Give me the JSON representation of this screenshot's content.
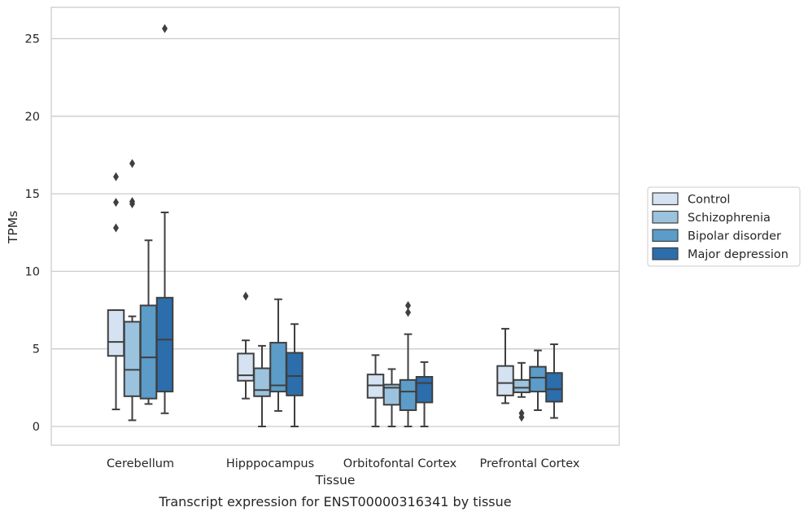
{
  "chart_data": {
    "type": "box",
    "xlabel": "Tissue",
    "ylabel": "TPMs",
    "caption": "Transcript expression for ENST00000316341 by tissue",
    "ylim": [
      -1.2,
      26.8
    ],
    "yticks": [
      0,
      5,
      10,
      15,
      20,
      25
    ],
    "grid": "horizontal",
    "legend_position": "right",
    "categories": [
      "Cerebellum",
      "Hipppocampus",
      "Orbitofontal Cortex",
      "Prefrontal Cortex"
    ],
    "series": [
      {
        "name": "Control",
        "color": "#d4e2f1",
        "boxes": [
          {
            "whislo": 1.1,
            "q1": 4.55,
            "med": 5.45,
            "q3": 7.5,
            "whishi": 7.5,
            "fliers": [
              16.1,
              14.45,
              12.8
            ]
          },
          {
            "whislo": 1.8,
            "q1": 2.95,
            "med": 3.3,
            "q3": 4.7,
            "whishi": 5.55,
            "fliers": [
              8.4
            ]
          },
          {
            "whislo": 0.0,
            "q1": 1.85,
            "med": 2.65,
            "q3": 3.35,
            "whishi": 4.6,
            "fliers": []
          },
          {
            "whislo": 1.5,
            "q1": 2.0,
            "med": 2.8,
            "q3": 3.9,
            "whishi": 6.3,
            "fliers": []
          }
        ]
      },
      {
        "name": "Schizophrenia",
        "color": "#9cc3de",
        "boxes": [
          {
            "whislo": 0.4,
            "q1": 1.95,
            "med": 3.65,
            "q3": 6.75,
            "whishi": 7.1,
            "fliers": [
              16.95,
              14.5,
              14.35
            ]
          },
          {
            "whislo": 0.0,
            "q1": 1.95,
            "med": 2.35,
            "q3": 3.75,
            "whishi": 5.2,
            "fliers": []
          },
          {
            "whislo": 0.0,
            "q1": 1.4,
            "med": 2.5,
            "q3": 2.7,
            "whishi": 3.7,
            "fliers": []
          },
          {
            "whislo": 1.9,
            "q1": 2.2,
            "med": 2.5,
            "q3": 3.0,
            "whishi": 4.1,
            "fliers": [
              0.85,
              0.6
            ]
          }
        ]
      },
      {
        "name": "Bipolar disorder",
        "color": "#5b9cc8",
        "boxes": [
          {
            "whislo": 1.45,
            "q1": 1.8,
            "med": 4.45,
            "q3": 7.8,
            "whishi": 12.0,
            "fliers": []
          },
          {
            "whislo": 1.0,
            "q1": 2.25,
            "med": 2.65,
            "q3": 5.4,
            "whishi": 8.2,
            "fliers": []
          },
          {
            "whislo": 0.0,
            "q1": 1.05,
            "med": 2.25,
            "q3": 3.0,
            "whishi": 5.95,
            "fliers": [
              7.8,
              7.35
            ]
          },
          {
            "whislo": 1.05,
            "q1": 2.25,
            "med": 3.15,
            "q3": 3.85,
            "whishi": 4.9,
            "fliers": []
          }
        ]
      },
      {
        "name": "Major depression",
        "color": "#2c6dac",
        "boxes": [
          {
            "whislo": 0.85,
            "q1": 2.25,
            "med": 5.6,
            "q3": 8.3,
            "whishi": 13.8,
            "fliers": [
              25.65
            ]
          },
          {
            "whislo": 0.0,
            "q1": 2.0,
            "med": 3.25,
            "q3": 4.75,
            "whishi": 6.6,
            "fliers": []
          },
          {
            "whislo": 0.0,
            "q1": 1.55,
            "med": 2.8,
            "q3": 3.2,
            "whishi": 4.15,
            "fliers": []
          },
          {
            "whislo": 0.55,
            "q1": 1.6,
            "med": 2.4,
            "q3": 3.45,
            "whishi": 5.3,
            "fliers": []
          }
        ]
      }
    ]
  }
}
